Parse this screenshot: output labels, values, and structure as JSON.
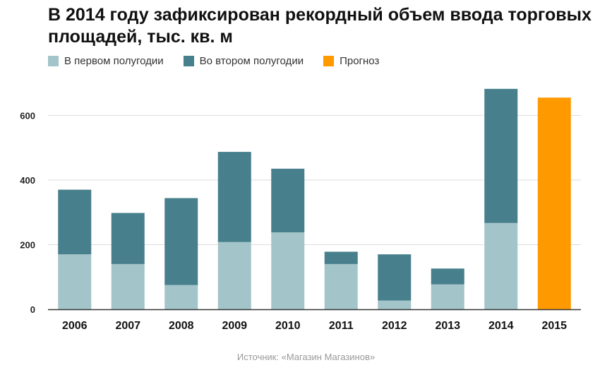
{
  "title": "В 2014 году зафиксирован рекордный объем ввода торговых площадей, тыс. кв. м",
  "legend": [
    {
      "label": "В первом полугодии",
      "color": "#a3c4c8"
    },
    {
      "label": "Во втором полугодии",
      "color": "#477f8c"
    },
    {
      "label": "Прогноз",
      "color": "#ff9900"
    }
  ],
  "source": "Источник: «Магазин Магазинов»",
  "chart_data": {
    "type": "bar",
    "stacked": true,
    "categories": [
      "2006",
      "2007",
      "2008",
      "2009",
      "2010",
      "2011",
      "2012",
      "2013",
      "2014",
      "2015"
    ],
    "series": [
      {
        "name": "В первом полугодии",
        "color": "#a3c4c8",
        "values": [
          170,
          140,
          75,
          208,
          238,
          140,
          27,
          77,
          267,
          0
        ]
      },
      {
        "name": "Во втором полугодии",
        "color": "#477f8c",
        "values": [
          200,
          158,
          269,
          279,
          197,
          38,
          143,
          49,
          415,
          0
        ]
      },
      {
        "name": "Прогноз",
        "color": "#ff9900",
        "values": [
          0,
          0,
          0,
          0,
          0,
          0,
          0,
          0,
          0,
          655
        ]
      }
    ],
    "yticks": [
      0,
      200,
      400,
      600
    ],
    "ylim": [
      0,
      700
    ],
    "grid": true,
    "legend_position": "top-left"
  }
}
